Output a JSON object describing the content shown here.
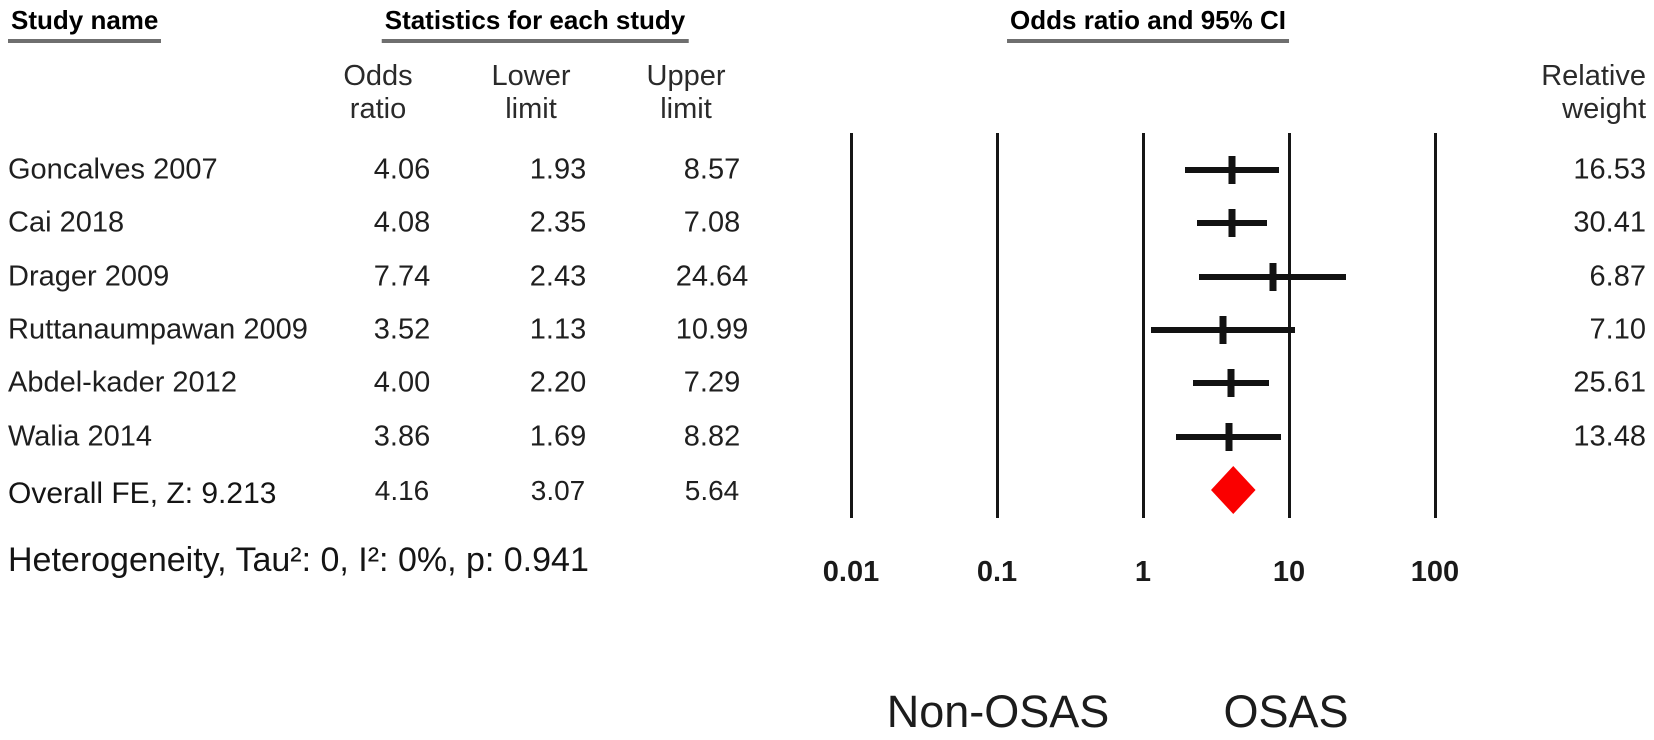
{
  "headers": {
    "study_name": "Study name",
    "statistics": "Statistics for each study",
    "plot": "Odds ratio and 95% CI",
    "odds_ratio_col": "Odds\nratio",
    "lower_limit_col": "Lower\nlimit",
    "upper_limit_col": "Upper\nlimit",
    "relative_weight_col": "Relative\nweight"
  },
  "chart_data": {
    "type": "forest",
    "title": "Odds ratio and 95% CI",
    "effect_measure": "Odds ratio",
    "studies": [
      {
        "name": "Goncalves 2007",
        "odds_ratio": "4.06",
        "lower_limit": "1.93",
        "upper_limit": "8.57",
        "relative_weight": "16.53"
      },
      {
        "name": "Cai 2018",
        "odds_ratio": "4.08",
        "lower_limit": "2.35",
        "upper_limit": "7.08",
        "relative_weight": "30.41"
      },
      {
        "name": "Drager 2009",
        "odds_ratio": "7.74",
        "lower_limit": "2.43",
        "upper_limit": "24.64",
        "relative_weight": "6.87"
      },
      {
        "name": "Ruttanaumpawan 2009",
        "odds_ratio": "3.52",
        "lower_limit": "1.13",
        "upper_limit": "10.99",
        "relative_weight": "7.10"
      },
      {
        "name": "Abdel-kader 2012",
        "odds_ratio": "4.00",
        "lower_limit": "2.20",
        "upper_limit": "7.29",
        "relative_weight": "25.61"
      },
      {
        "name": "Walia 2014",
        "odds_ratio": "3.86",
        "lower_limit": "1.69",
        "upper_limit": "8.82",
        "relative_weight": "13.48"
      }
    ],
    "overall": {
      "label": "Overall FE, Z: 9.213",
      "odds_ratio": "4.16",
      "lower_limit": "3.07",
      "upper_limit": "5.64"
    },
    "heterogeneity": "Heterogeneity, Tau²: 0, I²: 0%, p: 0.941",
    "x_axis": {
      "scale": "log",
      "ticks": [
        "0.01",
        "0.1",
        "1",
        "10",
        "100"
      ],
      "range": [
        0.01,
        100
      ]
    },
    "group_labels": {
      "left": "Non-OSAS",
      "right": "OSAS"
    },
    "colors": {
      "diamond": "#fa0000",
      "lines": "#121212"
    }
  }
}
